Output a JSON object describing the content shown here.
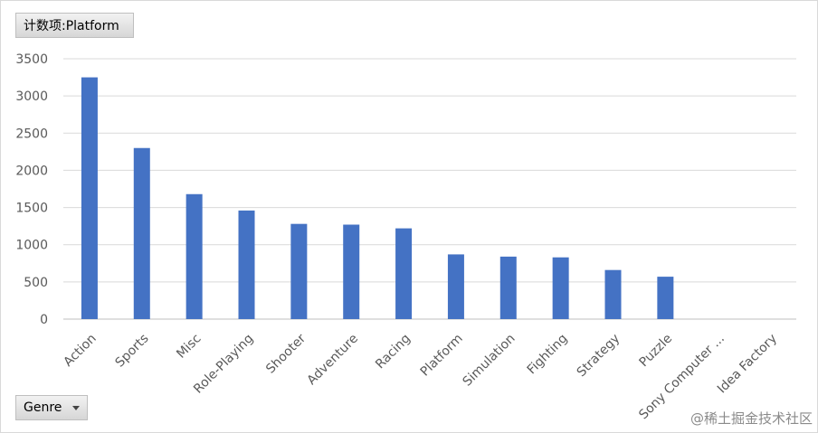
{
  "value_field_label": "计数项:Platform",
  "axis_field_label": "Genre",
  "watermark": "@稀土掘金技术社区",
  "chart_data": {
    "type": "bar",
    "categories": [
      "Action",
      "Sports",
      "Misc",
      "Role-Playing",
      "Shooter",
      "Adventure",
      "Racing",
      "Platform",
      "Simulation",
      "Fighting",
      "Strategy",
      "Puzzle",
      "Sony Computer ...",
      "Idea Factory"
    ],
    "values": [
      3250,
      2300,
      1680,
      1460,
      1280,
      1270,
      1220,
      870,
      840,
      830,
      660,
      570,
      0,
      0
    ],
    "ylim": [
      0,
      3500
    ],
    "yticks": [
      0,
      500,
      1000,
      1500,
      2000,
      2500,
      3000,
      3500
    ],
    "grid": true,
    "bar_color": "#4472c4",
    "grid_color": "#d9d9d9",
    "title": "",
    "xlabel": "",
    "ylabel": ""
  }
}
